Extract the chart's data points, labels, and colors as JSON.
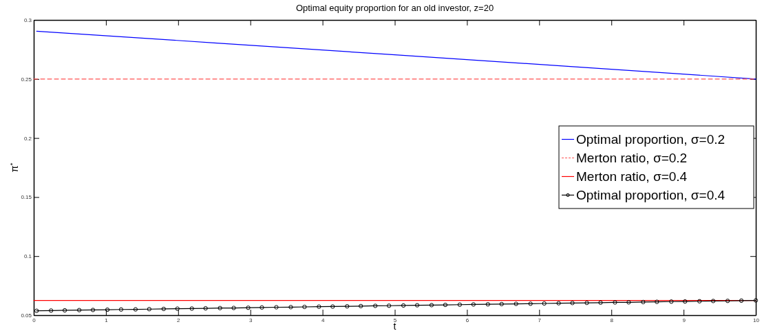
{
  "chart_data": {
    "type": "line",
    "title": "Optimal equity proportion for an old investor, z=20",
    "xlabel": "t",
    "ylabel": "π$^{*}$",
    "xlim": [
      0,
      10
    ],
    "xticks": [
      0,
      1,
      2,
      3,
      4,
      5,
      6,
      7,
      8,
      9,
      10
    ],
    "ylim": [
      0.05,
      0.3
    ],
    "yticks": [
      0.05,
      0.1,
      0.15,
      0.2,
      0.25,
      0.3
    ],
    "grid": false,
    "legend": "right",
    "series": [
      {
        "name": "Optimal proportion, σ=0.2",
        "color": "#0000ff",
        "line_style": "solid",
        "marker": "none",
        "x": [
          0.04,
          2.5,
          5,
          7.5,
          10
        ],
        "values": [
          0.2905,
          0.2806,
          0.2705,
          0.2603,
          0.25
        ]
      },
      {
        "name": "Merton ratio, σ=0.2",
        "color": "#ff5050",
        "line_style": "dashed",
        "marker": "none",
        "x": [
          0,
          10
        ],
        "values": [
          0.25,
          0.25
        ]
      },
      {
        "name": "Merton ratio, σ=0.4",
        "color": "#ff0000",
        "line_style": "solid",
        "marker": "none",
        "x": [
          0,
          10
        ],
        "values": [
          0.0625,
          0.0625
        ]
      },
      {
        "name": "Optimal proportion, σ=0.4",
        "color": "#000000",
        "line_style": "solid",
        "marker": "circle",
        "x": [
          0.04,
          0.24,
          0.43,
          0.63,
          0.82,
          1.02,
          1.21,
          1.41,
          1.6,
          1.8,
          1.99,
          2.19,
          2.38,
          2.58,
          2.77,
          2.97,
          3.16,
          3.36,
          3.56,
          3.75,
          3.95,
          4.14,
          4.34,
          4.53,
          4.73,
          4.92,
          5.12,
          5.31,
          5.51,
          5.7,
          5.9,
          6.09,
          6.29,
          6.48,
          6.68,
          6.88,
          7.07,
          7.27,
          7.46,
          7.66,
          7.85,
          8.05,
          8.24,
          8.44,
          8.63,
          8.83,
          9.02,
          9.22,
          9.41,
          9.61,
          9.8,
          10.0
        ],
        "values": [
          0.0537,
          0.0539,
          0.0541,
          0.0543,
          0.0544,
          0.0546,
          0.0548,
          0.0549,
          0.0551,
          0.0553,
          0.0555,
          0.0556,
          0.0558,
          0.056,
          0.0561,
          0.0563,
          0.0565,
          0.0567,
          0.0568,
          0.057,
          0.0572,
          0.0573,
          0.0575,
          0.0577,
          0.0579,
          0.058,
          0.0582,
          0.0584,
          0.0585,
          0.0587,
          0.0589,
          0.0591,
          0.0592,
          0.0594,
          0.0596,
          0.0597,
          0.0599,
          0.0601,
          0.0603,
          0.0604,
          0.0606,
          0.0608,
          0.0609,
          0.0611,
          0.0613,
          0.0615,
          0.0616,
          0.0618,
          0.062,
          0.0621,
          0.0623,
          0.0625
        ]
      }
    ]
  }
}
